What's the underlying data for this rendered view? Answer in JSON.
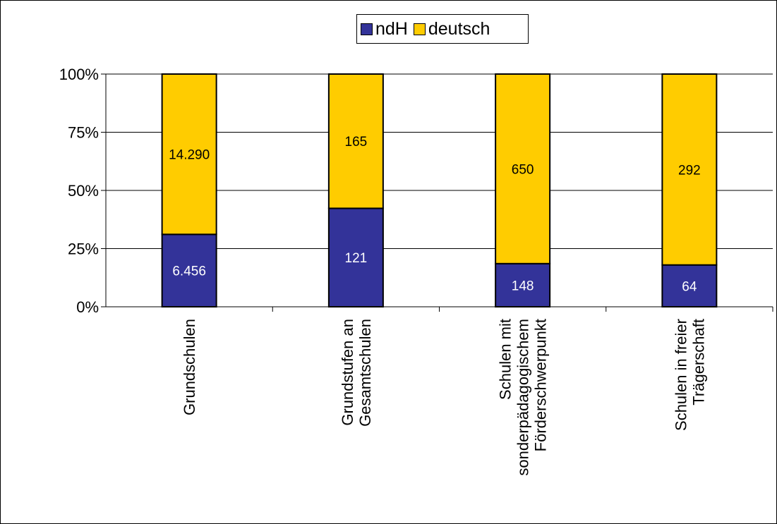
{
  "chart_data": {
    "type": "bar",
    "stacked": "percent",
    "categories": [
      [
        "Grundschulen"
      ],
      [
        "Grundstufen an",
        "Gesamtschulen"
      ],
      [
        "Schulen mit",
        "sonderpädagogischem",
        "Förderschwerpunkt"
      ],
      [
        "Schulen in freier",
        "Trägerschaft"
      ]
    ],
    "series": [
      {
        "name": "ndH",
        "values": [
          6456,
          121,
          148,
          64
        ],
        "labels": [
          "6.456",
          "121",
          "148",
          "64"
        ],
        "color": "#333399"
      },
      {
        "name": "deutsch",
        "values": [
          14290,
          165,
          650,
          292
        ],
        "labels": [
          "14.290",
          "165",
          "650",
          "292"
        ],
        "color": "#FFCC00"
      }
    ],
    "yticks": [
      "0%",
      "25%",
      "50%",
      "75%",
      "100%"
    ],
    "ylim": [
      0,
      100
    ],
    "grid": true,
    "legend_position": "top"
  }
}
